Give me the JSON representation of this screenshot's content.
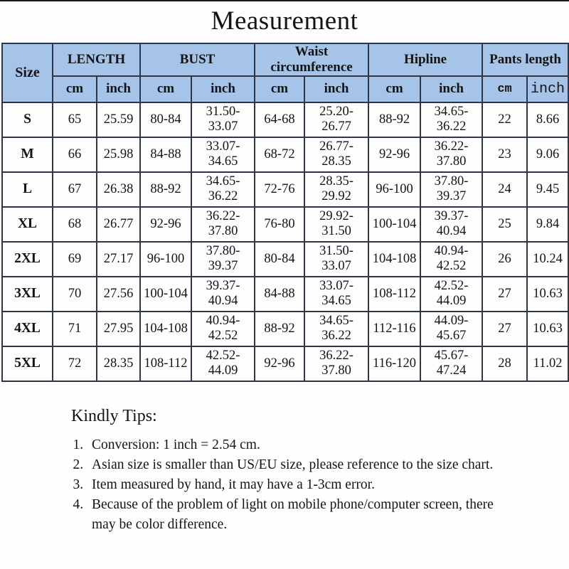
{
  "title": "Measurement",
  "colors": {
    "header_bg": "#a5c4e8",
    "border": "#2e3546",
    "text": "#141414"
  },
  "table": {
    "size_label": "Size",
    "groups": [
      {
        "label": "LENGTH",
        "sub": [
          "cm",
          "inch"
        ]
      },
      {
        "label": "BUST",
        "sub": [
          "cm",
          "inch"
        ]
      },
      {
        "label": "Waist circumference",
        "sub": [
          "cm",
          "inch"
        ]
      },
      {
        "label": "Hipline",
        "sub": [
          "cm",
          "inch"
        ]
      },
      {
        "label": "Pants length",
        "sub": [
          "cm",
          "inch"
        ]
      }
    ],
    "rows": [
      {
        "size": "S",
        "values": [
          "65",
          "25.59",
          "80-84",
          "31.50-33.07",
          "64-68",
          "25.20-26.77",
          "88-92",
          "34.65-36.22",
          "22",
          "8.66"
        ]
      },
      {
        "size": "M",
        "values": [
          "66",
          "25.98",
          "84-88",
          "33.07-34.65",
          "68-72",
          "26.77-28.35",
          "92-96",
          "36.22-37.80",
          "23",
          "9.06"
        ]
      },
      {
        "size": "L",
        "values": [
          "67",
          "26.38",
          "88-92",
          "34.65-36.22",
          "72-76",
          "28.35-29.92",
          "96-100",
          "37.80-39.37",
          "24",
          "9.45"
        ]
      },
      {
        "size": "XL",
        "values": [
          "68",
          "26.77",
          "92-96",
          "36.22-37.80",
          "76-80",
          "29.92-31.50",
          "100-104",
          "39.37-40.94",
          "25",
          "9.84"
        ]
      },
      {
        "size": "2XL",
        "values": [
          "69",
          "27.17",
          "96-100",
          "37.80-39.37",
          "80-84",
          "31.50-33.07",
          "104-108",
          "40.94-42.52",
          "26",
          "10.24"
        ]
      },
      {
        "size": "3XL",
        "values": [
          "70",
          "27.56",
          "100-104",
          "39.37-40.94",
          "84-88",
          "33.07-34.65",
          "108-112",
          "42.52-44.09",
          "27",
          "10.63"
        ]
      },
      {
        "size": "4XL",
        "values": [
          "71",
          "27.95",
          "104-108",
          "40.94-42.52",
          "88-92",
          "34.65-36.22",
          "112-116",
          "44.09-45.67",
          "27",
          "10.63"
        ]
      },
      {
        "size": "5XL",
        "values": [
          "72",
          "28.35",
          "108-112",
          "42.52-44.09",
          "92-96",
          "36.22-37.80",
          "116-120",
          "45.67-47.24",
          "28",
          "11.02"
        ]
      }
    ]
  },
  "tips": {
    "heading": "Kindly Tips:",
    "items": [
      "Conversion: 1 inch = 2.54 cm.",
      "Asian size is smaller than US/EU size, please reference to the size chart.",
      "Item measured by hand, it may have a 1-3cm error.",
      "Because of the problem of light on mobile phone/computer screen, there may be color difference."
    ]
  }
}
